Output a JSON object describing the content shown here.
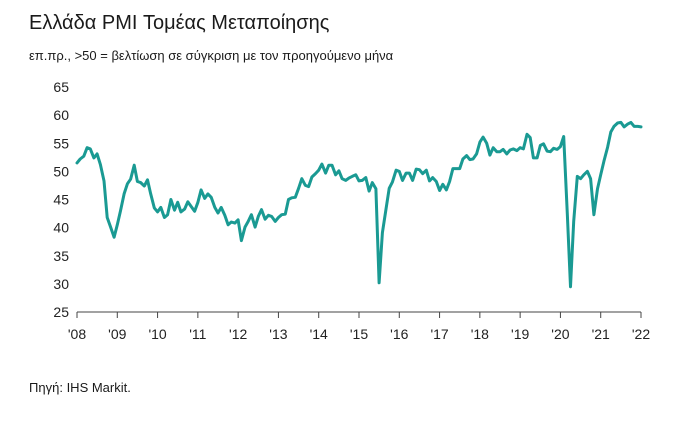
{
  "header": {
    "title": "Ελλάδα PMI Τομέας Μεταποίησης",
    "subtitle": "επ.πρ., >50 = βελτίωση σε σύγκριση με τον προηγούμενο μήνα"
  },
  "footer": {
    "source": "Πηγή: IHS Markit."
  },
  "chart_data": {
    "type": "line",
    "title": "Ελλάδα PMI Τομέας Μεταποίησης",
    "subtitle": "επ.πρ., >50 = βελτίωση σε σύγκριση με τον προηγούμενο μήνα",
    "xlabel": "",
    "ylabel": "",
    "ylim": [
      25,
      65
    ],
    "yticks": [
      25,
      30,
      35,
      40,
      45,
      50,
      55,
      60,
      65
    ],
    "xlim": [
      2008.0,
      2022.0
    ],
    "xtick_labels": [
      "'08",
      "'09",
      "'10",
      "'11",
      "'12",
      "'13",
      "'14",
      "'15",
      "'16",
      "'17",
      "'18",
      "'19",
      "'20",
      "'21",
      "'22"
    ],
    "grid": false,
    "legend": "none",
    "line_color": "#1a9a93",
    "series": [
      {
        "values": [
          [
            2008.0,
            51.5
          ],
          [
            2008.08,
            52.2
          ],
          [
            2008.17,
            52.7
          ],
          [
            2008.25,
            54.2
          ],
          [
            2008.33,
            54.0
          ],
          [
            2008.42,
            52.4
          ],
          [
            2008.5,
            53.1
          ],
          [
            2008.58,
            51.2
          ],
          [
            2008.67,
            48.3
          ],
          [
            2008.75,
            41.8
          ],
          [
            2008.83,
            40.2
          ],
          [
            2008.92,
            38.3
          ],
          [
            2009.0,
            40.5
          ],
          [
            2009.08,
            43.0
          ],
          [
            2009.17,
            46.0
          ],
          [
            2009.25,
            47.8
          ],
          [
            2009.33,
            48.6
          ],
          [
            2009.42,
            51.1
          ],
          [
            2009.5,
            48.2
          ],
          [
            2009.58,
            48.0
          ],
          [
            2009.67,
            47.4
          ],
          [
            2009.75,
            48.5
          ],
          [
            2009.83,
            46.0
          ],
          [
            2009.92,
            43.5
          ],
          [
            2010.0,
            42.8
          ],
          [
            2010.08,
            43.6
          ],
          [
            2010.17,
            41.8
          ],
          [
            2010.25,
            42.3
          ],
          [
            2010.33,
            45.0
          ],
          [
            2010.42,
            43.1
          ],
          [
            2010.5,
            44.5
          ],
          [
            2010.58,
            42.8
          ],
          [
            2010.67,
            43.3
          ],
          [
            2010.75,
            44.6
          ],
          [
            2010.83,
            43.8
          ],
          [
            2010.92,
            42.9
          ],
          [
            2011.0,
            44.5
          ],
          [
            2011.08,
            46.7
          ],
          [
            2011.17,
            45.2
          ],
          [
            2011.25,
            46.0
          ],
          [
            2011.33,
            45.4
          ],
          [
            2011.42,
            43.6
          ],
          [
            2011.5,
            42.6
          ],
          [
            2011.58,
            43.6
          ],
          [
            2011.67,
            42.2
          ],
          [
            2011.75,
            40.5
          ],
          [
            2011.83,
            41.0
          ],
          [
            2011.92,
            40.8
          ],
          [
            2012.0,
            41.4
          ],
          [
            2012.08,
            37.7
          ],
          [
            2012.17,
            40.1
          ],
          [
            2012.25,
            41.1
          ],
          [
            2012.33,
            42.3
          ],
          [
            2012.42,
            40.1
          ],
          [
            2012.5,
            42.0
          ],
          [
            2012.58,
            43.2
          ],
          [
            2012.67,
            41.5
          ],
          [
            2012.75,
            42.2
          ],
          [
            2012.83,
            42.0
          ],
          [
            2012.92,
            41.1
          ],
          [
            2013.0,
            41.8
          ],
          [
            2013.08,
            42.3
          ],
          [
            2013.17,
            42.4
          ],
          [
            2013.25,
            45.0
          ],
          [
            2013.33,
            45.3
          ],
          [
            2013.42,
            45.4
          ],
          [
            2013.5,
            47.0
          ],
          [
            2013.58,
            48.7
          ],
          [
            2013.67,
            47.5
          ],
          [
            2013.75,
            47.3
          ],
          [
            2013.83,
            49.0
          ],
          [
            2013.92,
            49.6
          ],
          [
            2014.0,
            50.2
          ],
          [
            2014.08,
            51.3
          ],
          [
            2014.17,
            49.7
          ],
          [
            2014.25,
            51.1
          ],
          [
            2014.33,
            51.1
          ],
          [
            2014.42,
            49.4
          ],
          [
            2014.5,
            50.1
          ],
          [
            2014.58,
            48.7
          ],
          [
            2014.67,
            48.4
          ],
          [
            2014.75,
            48.8
          ],
          [
            2014.83,
            49.1
          ],
          [
            2014.92,
            49.4
          ],
          [
            2015.0,
            48.3
          ],
          [
            2015.08,
            48.4
          ],
          [
            2015.17,
            48.9
          ],
          [
            2015.25,
            46.5
          ],
          [
            2015.33,
            48.0
          ],
          [
            2015.42,
            46.9
          ],
          [
            2015.5,
            30.2
          ],
          [
            2015.58,
            39.1
          ],
          [
            2015.67,
            43.3
          ],
          [
            2015.75,
            47.0
          ],
          [
            2015.83,
            48.1
          ],
          [
            2015.92,
            50.2
          ],
          [
            2016.0,
            50.0
          ],
          [
            2016.08,
            48.4
          ],
          [
            2016.17,
            49.7
          ],
          [
            2016.25,
            49.7
          ],
          [
            2016.33,
            48.4
          ],
          [
            2016.42,
            50.4
          ],
          [
            2016.5,
            50.3
          ],
          [
            2016.58,
            49.6
          ],
          [
            2016.67,
            50.2
          ],
          [
            2016.75,
            48.3
          ],
          [
            2016.83,
            48.9
          ],
          [
            2016.92,
            48.2
          ],
          [
            2017.0,
            46.6
          ],
          [
            2017.08,
            47.7
          ],
          [
            2017.17,
            46.7
          ],
          [
            2017.25,
            48.2
          ],
          [
            2017.33,
            50.5
          ],
          [
            2017.42,
            50.5
          ],
          [
            2017.5,
            50.5
          ],
          [
            2017.58,
            52.2
          ],
          [
            2017.67,
            52.8
          ],
          [
            2017.75,
            52.1
          ],
          [
            2017.83,
            52.2
          ],
          [
            2017.92,
            53.1
          ],
          [
            2018.0,
            55.2
          ],
          [
            2018.08,
            56.1
          ],
          [
            2018.17,
            55.0
          ],
          [
            2018.25,
            52.9
          ],
          [
            2018.33,
            54.2
          ],
          [
            2018.42,
            53.5
          ],
          [
            2018.5,
            53.5
          ],
          [
            2018.58,
            53.9
          ],
          [
            2018.67,
            53.1
          ],
          [
            2018.75,
            53.8
          ],
          [
            2018.83,
            54.0
          ],
          [
            2018.92,
            53.7
          ],
          [
            2019.0,
            54.2
          ],
          [
            2019.08,
            54.0
          ],
          [
            2019.17,
            56.6
          ],
          [
            2019.25,
            56.0
          ],
          [
            2019.33,
            52.4
          ],
          [
            2019.42,
            52.4
          ],
          [
            2019.5,
            54.6
          ],
          [
            2019.58,
            54.9
          ],
          [
            2019.67,
            53.6
          ],
          [
            2019.75,
            53.5
          ],
          [
            2019.83,
            54.1
          ],
          [
            2019.92,
            53.9
          ],
          [
            2020.0,
            54.4
          ],
          [
            2020.08,
            56.2
          ],
          [
            2020.17,
            42.5
          ],
          [
            2020.25,
            29.5
          ],
          [
            2020.33,
            41.1
          ],
          [
            2020.42,
            49.1
          ],
          [
            2020.5,
            48.7
          ],
          [
            2020.58,
            49.4
          ],
          [
            2020.67,
            50.0
          ],
          [
            2020.75,
            48.7
          ],
          [
            2020.83,
            42.3
          ],
          [
            2020.92,
            46.9
          ],
          [
            2021.0,
            49.4
          ],
          [
            2021.08,
            51.8
          ],
          [
            2021.17,
            54.3
          ],
          [
            2021.25,
            57.0
          ],
          [
            2021.33,
            58.0
          ],
          [
            2021.42,
            58.6
          ],
          [
            2021.5,
            58.7
          ],
          [
            2021.58,
            57.9
          ],
          [
            2021.67,
            58.4
          ],
          [
            2021.75,
            58.7
          ],
          [
            2021.83,
            58.0
          ],
          [
            2021.92,
            58.0
          ],
          [
            2022.0,
            57.9
          ]
        ]
      }
    ]
  }
}
